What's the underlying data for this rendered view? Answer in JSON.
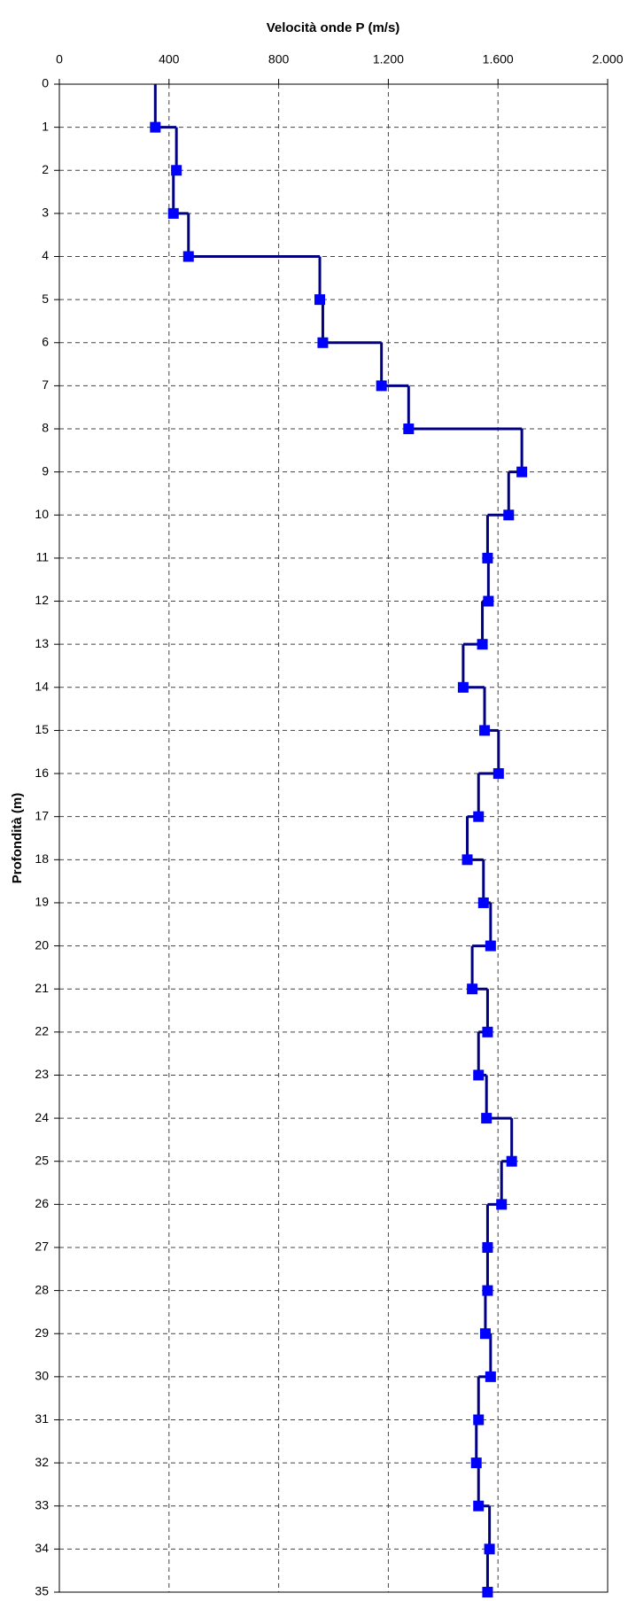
{
  "chart_data": {
    "type": "step-profile",
    "title": "Velocità onde P (m/s)",
    "y_label": "Profondità (m)",
    "depths": [
      1,
      2,
      3,
      4,
      5,
      6,
      7,
      8,
      9,
      10,
      11,
      12,
      13,
      14,
      15,
      16,
      17,
      18,
      19,
      20,
      21,
      22,
      23,
      24,
      25,
      26,
      27,
      28,
      29,
      30,
      31,
      32,
      33,
      34,
      35
    ],
    "values": [
      350,
      427,
      416,
      471,
      950,
      961,
      1175,
      1274,
      1687,
      1639,
      1562,
      1565,
      1543,
      1473,
      1551,
      1602,
      1529,
      1488,
      1547,
      1573,
      1506,
      1562,
      1529,
      1558,
      1650,
      1613,
      1562,
      1562,
      1554,
      1573,
      1529,
      1521,
      1529,
      1569,
      1562
    ],
    "line_color": "#000080",
    "marker_color": "#0000ff",
    "xlim": [
      0,
      2000
    ],
    "xticks": [
      0,
      400,
      800,
      {
        "value": 1200,
        "label": "1.200"
      },
      {
        "value": 1600,
        "label": "1.600"
      },
      {
        "value": 2000,
        "label": "2.000"
      }
    ],
    "ylim": [
      0,
      35
    ],
    "yticks": [
      0,
      1,
      2,
      3,
      4,
      5,
      6,
      7,
      8,
      9,
      10,
      11,
      12,
      13,
      14,
      15,
      16,
      17,
      18,
      19,
      20,
      21,
      22,
      23,
      24,
      25,
      26,
      27,
      28,
      29,
      30,
      31,
      32,
      33,
      34,
      35
    ],
    "y_reversed": true,
    "grid": true
  }
}
